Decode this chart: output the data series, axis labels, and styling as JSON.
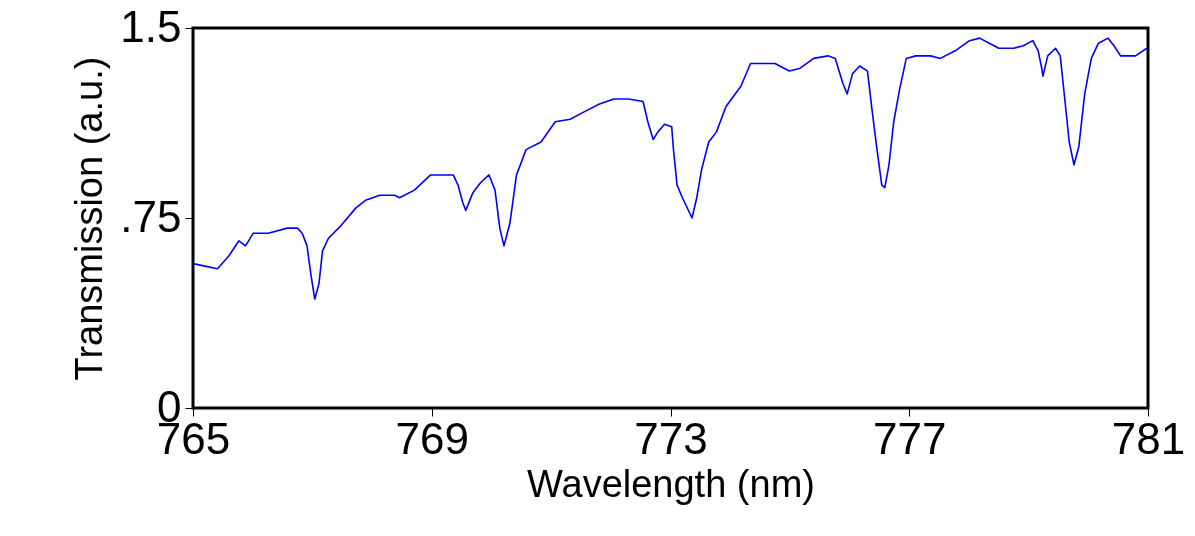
{
  "chart_data": {
    "type": "line",
    "xlabel": "Wavelength (nm)",
    "ylabel": "Transmission (a.u.)",
    "xlim": [
      765,
      781
    ],
    "ylim": [
      0,
      1.5
    ],
    "xticks": [
      765,
      769,
      773,
      777,
      781
    ],
    "yticks": [
      0,
      {
        "value": 0.75,
        "label": ".75"
      },
      1.5
    ],
    "grid": false,
    "marker": "none",
    "line_style": "solid",
    "series": [
      {
        "color": "#0000ff",
        "x": [
          765.0,
          765.2,
          765.41,
          765.6,
          765.77,
          765.88,
          766.01,
          766.26,
          766.58,
          766.75,
          766.83,
          766.91,
          766.98,
          767.04,
          767.11,
          767.17,
          767.27,
          767.48,
          767.73,
          767.89,
          768.13,
          768.38,
          768.46,
          768.71,
          768.98,
          769.36,
          769.44,
          769.52,
          769.57,
          769.69,
          769.82,
          769.96,
          770.06,
          770.14,
          770.21,
          770.31,
          770.42,
          770.58,
          770.83,
          771.07,
          771.32,
          771.56,
          771.81,
          772.05,
          772.3,
          772.54,
          772.62,
          772.71,
          772.79,
          772.9,
          773.02,
          773.05,
          773.11,
          773.2,
          773.36,
          773.44,
          773.52,
          773.64,
          773.77,
          773.93,
          774.18,
          774.34,
          774.5,
          774.75,
          774.99,
          775.16,
          775.4,
          775.64,
          775.76,
          775.89,
          775.96,
          776.05,
          776.17,
          776.3,
          776.38,
          776.46,
          776.54,
          776.59,
          776.66,
          776.74,
          776.84,
          776.95,
          777.11,
          777.36,
          777.52,
          777.77,
          778.01,
          778.18,
          778.34,
          778.5,
          778.75,
          778.91,
          779.07,
          779.16,
          779.22,
          779.24,
          779.32,
          779.45,
          779.53,
          779.61,
          779.68,
          779.76,
          779.84,
          779.94,
          780.05,
          780.17,
          780.33,
          780.43,
          780.54,
          780.79,
          780.98
        ],
        "values": [
          0.57,
          0.56,
          0.55,
          0.6,
          0.66,
          0.64,
          0.69,
          0.69,
          0.71,
          0.71,
          0.69,
          0.64,
          0.52,
          0.43,
          0.49,
          0.62,
          0.67,
          0.72,
          0.79,
          0.82,
          0.84,
          0.84,
          0.83,
          0.86,
          0.92,
          0.92,
          0.88,
          0.81,
          0.78,
          0.85,
          0.89,
          0.92,
          0.86,
          0.71,
          0.64,
          0.73,
          0.92,
          1.02,
          1.05,
          1.13,
          1.14,
          1.17,
          1.2,
          1.22,
          1.22,
          1.21,
          1.13,
          1.06,
          1.09,
          1.12,
          1.11,
          1.02,
          0.88,
          0.83,
          0.75,
          0.83,
          0.94,
          1.05,
          1.09,
          1.19,
          1.27,
          1.36,
          1.36,
          1.36,
          1.33,
          1.34,
          1.38,
          1.39,
          1.38,
          1.28,
          1.24,
          1.32,
          1.35,
          1.33,
          1.17,
          1.02,
          0.88,
          0.87,
          0.96,
          1.13,
          1.26,
          1.38,
          1.39,
          1.39,
          1.38,
          1.41,
          1.45,
          1.46,
          1.44,
          1.42,
          1.42,
          1.43,
          1.45,
          1.41,
          1.34,
          1.31,
          1.39,
          1.42,
          1.39,
          1.21,
          1.05,
          0.96,
          1.03,
          1.24,
          1.38,
          1.44,
          1.46,
          1.43,
          1.39,
          1.39,
          1.42
        ]
      }
    ]
  }
}
